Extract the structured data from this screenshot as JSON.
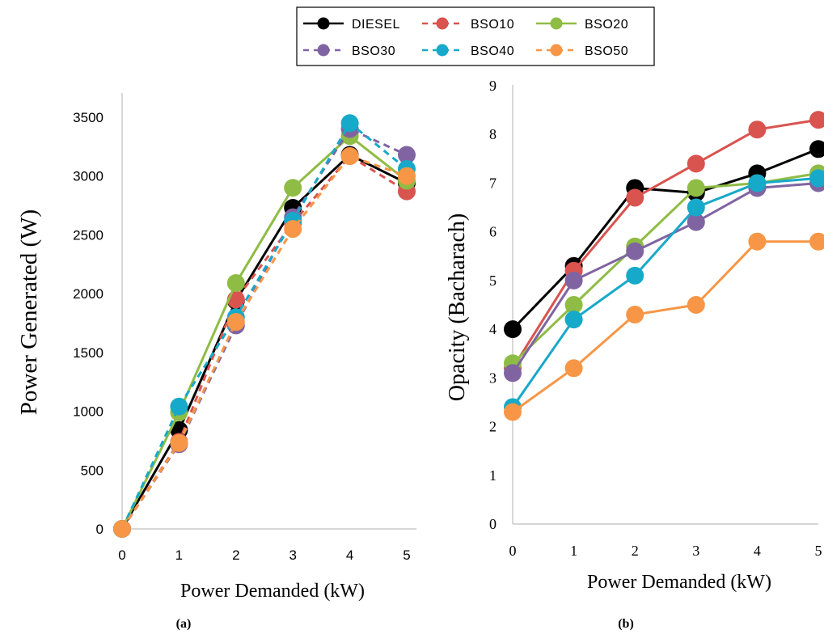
{
  "legend": {
    "entries": [
      {
        "name": "DIESEL",
        "color": "#000000",
        "dashed": false
      },
      {
        "name": "BSO10",
        "color": "#d9534f",
        "dashed": true
      },
      {
        "name": "BSO20",
        "color": "#8fbc45",
        "dashed": false
      },
      {
        "name": "BSO30",
        "color": "#8064a2",
        "dashed": true
      },
      {
        "name": "BSO40",
        "color": "#17a9c9",
        "dashed": true
      },
      {
        "name": "BSO50",
        "color": "#f79646",
        "dashed": true
      }
    ]
  },
  "panel_labels": [
    "(a)",
    "(b)"
  ],
  "chart_data": [
    {
      "type": "line",
      "x": [
        0,
        1,
        2,
        3,
        4,
        5
      ],
      "xlabel": "Power Demanded (kW)",
      "ylabel": "Power Generated (W)",
      "xlim": [
        0,
        5
      ],
      "ylim": [
        0,
        3500
      ],
      "yticks": [
        0,
        500,
        1000,
        1500,
        2000,
        2500,
        3000,
        3500
      ],
      "xticks": [
        0,
        1,
        2,
        3,
        4,
        5
      ],
      "grid": false,
      "legend_position": "top",
      "series": [
        {
          "name": "DIESEL",
          "color": "#000000",
          "dashed": false,
          "values": [
            0,
            840,
            1940,
            2730,
            3180,
            2940
          ]
        },
        {
          "name": "BSO10",
          "color": "#d9534f",
          "dashed": true,
          "values": [
            0,
            740,
            1950,
            2600,
            3170,
            2870
          ]
        },
        {
          "name": "BSO20",
          "color": "#8fbc45",
          "dashed": false,
          "values": [
            0,
            990,
            2090,
            2900,
            3340,
            2960
          ]
        },
        {
          "name": "BSO30",
          "color": "#8064a2",
          "dashed": true,
          "values": [
            0,
            720,
            1730,
            2650,
            3400,
            3180
          ]
        },
        {
          "name": "BSO40",
          "color": "#17a9c9",
          "dashed": true,
          "values": [
            0,
            1040,
            1800,
            2620,
            3450,
            3060
          ]
        },
        {
          "name": "BSO50",
          "color": "#f79646",
          "dashed": true,
          "values": [
            0,
            730,
            1760,
            2550,
            3170,
            3000
          ]
        }
      ]
    },
    {
      "type": "line",
      "x": [
        0,
        1,
        2,
        3,
        4,
        5
      ],
      "xlabel": "Power Demanded (kW)",
      "ylabel": "Opacity (Bacharach)",
      "xlim": [
        0,
        5
      ],
      "ylim": [
        0,
        9
      ],
      "yticks": [
        0,
        1,
        2,
        3,
        4,
        5,
        6,
        7,
        8,
        9
      ],
      "xticks": [
        0,
        1,
        2,
        3,
        4,
        5
      ],
      "grid": false,
      "series": [
        {
          "name": "DIESEL",
          "color": "#000000",
          "dashed": false,
          "values": [
            4.0,
            5.3,
            6.9,
            6.8,
            7.2,
            7.7
          ]
        },
        {
          "name": "BSO10",
          "color": "#d9534f",
          "dashed": false,
          "values": [
            3.2,
            5.2,
            6.7,
            7.4,
            8.1,
            8.3
          ]
        },
        {
          "name": "BSO20",
          "color": "#8fbc45",
          "dashed": false,
          "values": [
            3.3,
            4.5,
            5.7,
            6.9,
            7.0,
            7.2
          ]
        },
        {
          "name": "BSO30",
          "color": "#8064a2",
          "dashed": false,
          "values": [
            3.1,
            5.0,
            5.6,
            6.2,
            6.9,
            7.0
          ]
        },
        {
          "name": "BSO40",
          "color": "#17a9c9",
          "dashed": false,
          "values": [
            2.4,
            4.2,
            5.1,
            6.5,
            7.0,
            7.1
          ]
        },
        {
          "name": "BSO50",
          "color": "#f79646",
          "dashed": false,
          "values": [
            2.3,
            3.2,
            4.3,
            4.5,
            5.8,
            5.8
          ]
        }
      ]
    }
  ]
}
